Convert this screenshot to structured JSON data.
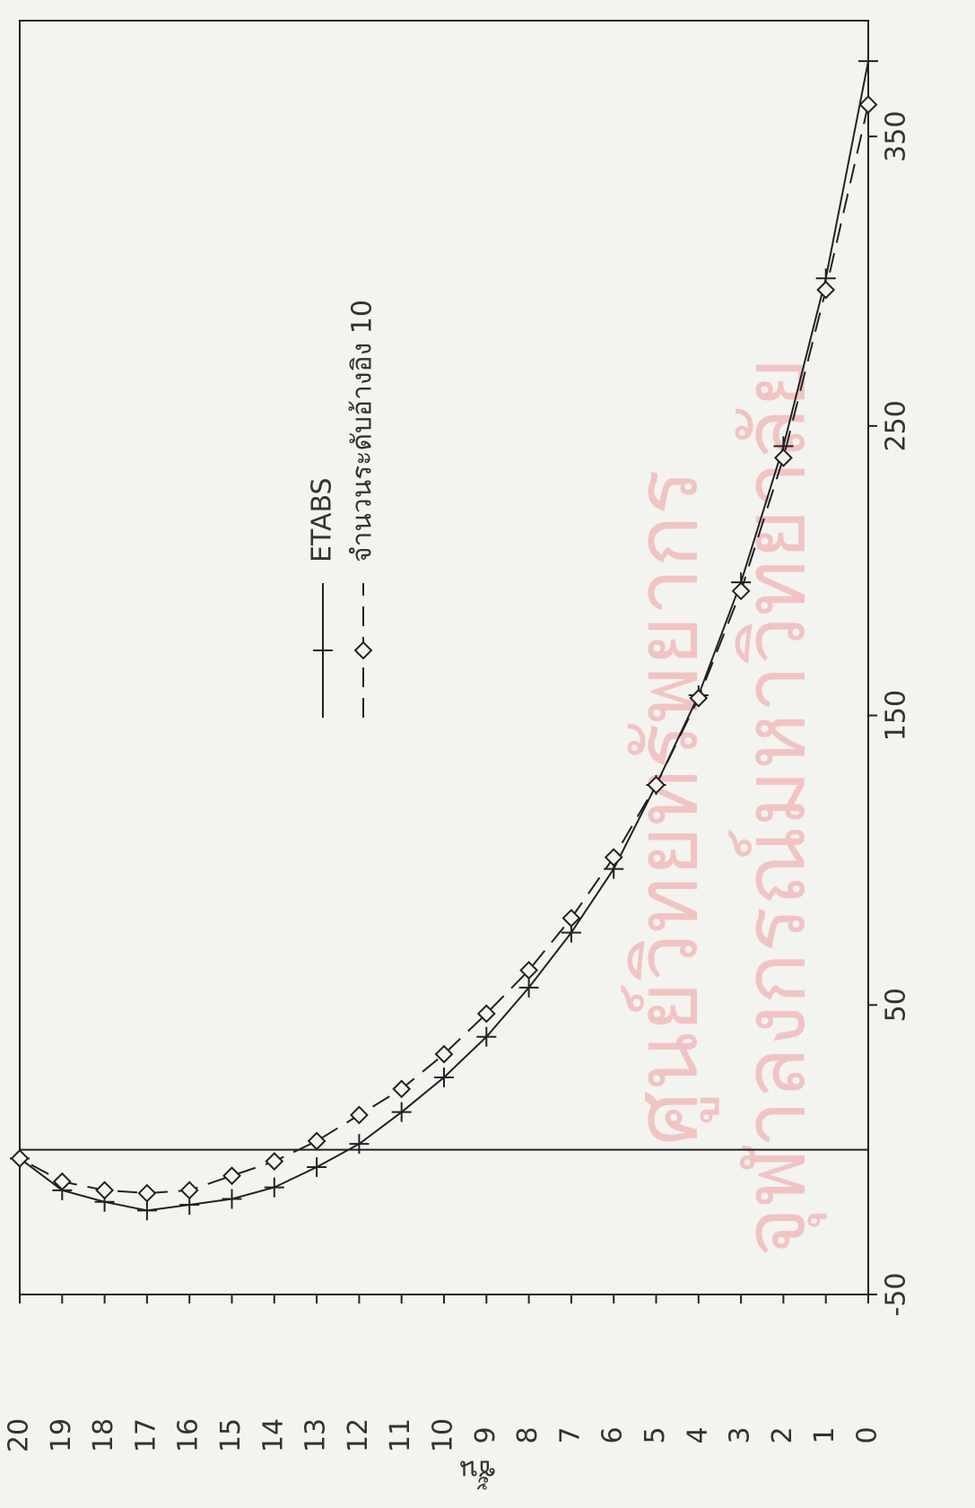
{
  "chart_data": {
    "type": "line",
    "x_label": "ชั้น",
    "watermark": [
      "ศูนย์วิทยทรัพยากร",
      "จุฬาลงกรณ์มหาวิทยาลัย"
    ],
    "categories": [
      0,
      1,
      2,
      3,
      4,
      5,
      6,
      7,
      8,
      9,
      10,
      11,
      12,
      13,
      14,
      15,
      16,
      17,
      18,
      19,
      20
    ],
    "series": [
      {
        "name": "ETABS",
        "color": "#222222",
        "line_style": "solid",
        "marker": "plus",
        "values": [
          376,
          301,
          243,
          196,
          157,
          126,
          97,
          75,
          56,
          39,
          25,
          13,
          2,
          -6,
          -13,
          -17,
          -19,
          -21,
          -18,
          -14,
          -3
        ]
      },
      {
        "name": "จำนวนระดับอ้างอิง 10",
        "color": "#222222",
        "line_style": "dashed",
        "marker": "diamond",
        "values": [
          361,
          297,
          239,
          193,
          156,
          126,
          101,
          80,
          62,
          47,
          33,
          21,
          12,
          3,
          -4,
          -9,
          -14,
          -15,
          -14,
          -11,
          -3
        ]
      }
    ],
    "xlim": [
      0,
      20
    ],
    "xticks": [
      0,
      1,
      2,
      3,
      4,
      5,
      6,
      7,
      8,
      9,
      10,
      11,
      12,
      13,
      14,
      15,
      16,
      17,
      18,
      19,
      20
    ],
    "ylim": [
      -50,
      390
    ],
    "yticks": [
      -50,
      50,
      150,
      250,
      350
    ],
    "zero_line": true
  }
}
